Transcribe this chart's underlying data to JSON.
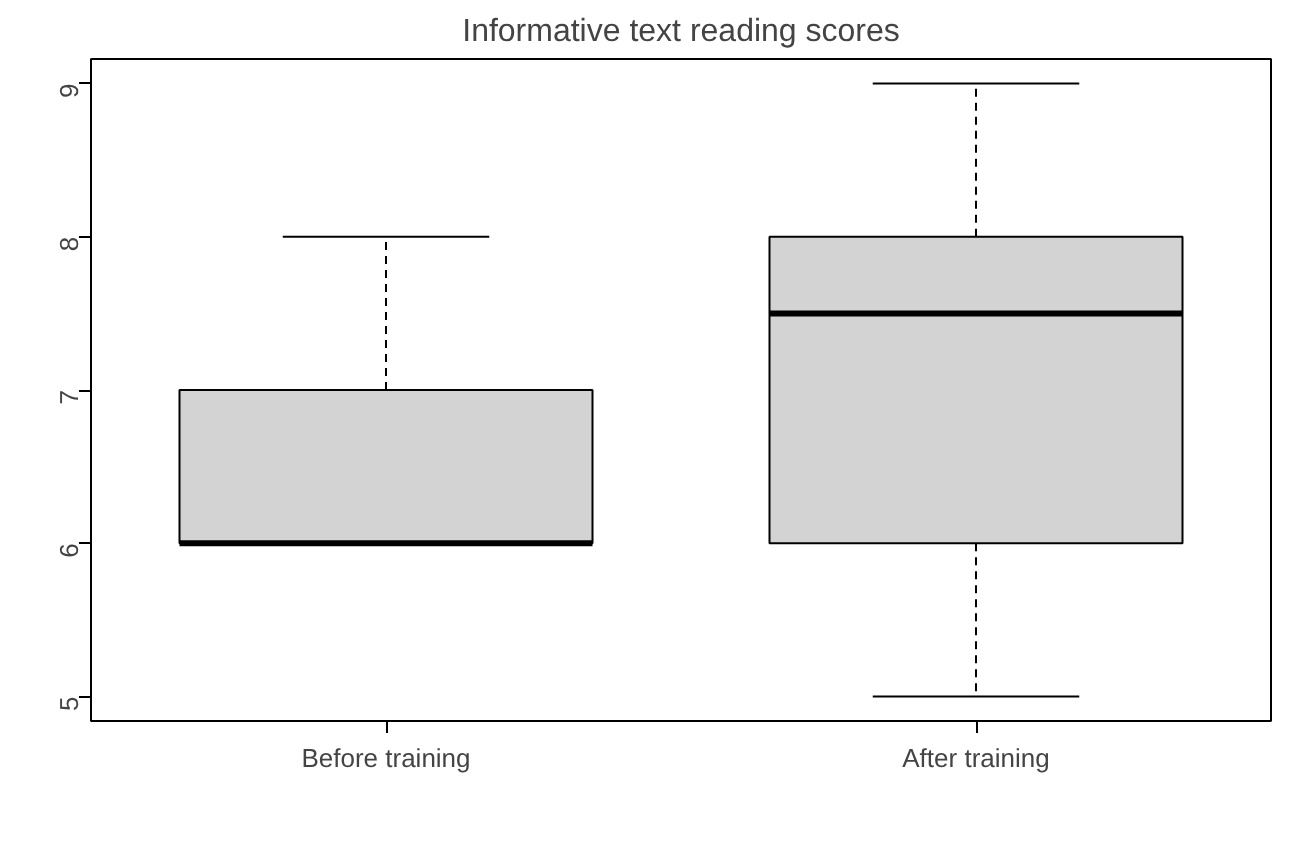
{
  "chart_data": {
    "type": "box",
    "title": "Informative text reading scores",
    "categories": [
      "Before training",
      "After training"
    ],
    "boxes": [
      {
        "low": 6,
        "q1": 6,
        "median": 6,
        "q3": 7,
        "high": 8
      },
      {
        "low": 5,
        "q1": 6,
        "median": 7.5,
        "q3": 8,
        "high": 9
      }
    ],
    "color": "#d3d3d3",
    "ylim": [
      4.84,
      9.16
    ],
    "yticks": [
      5,
      6,
      7,
      8,
      9
    ]
  }
}
